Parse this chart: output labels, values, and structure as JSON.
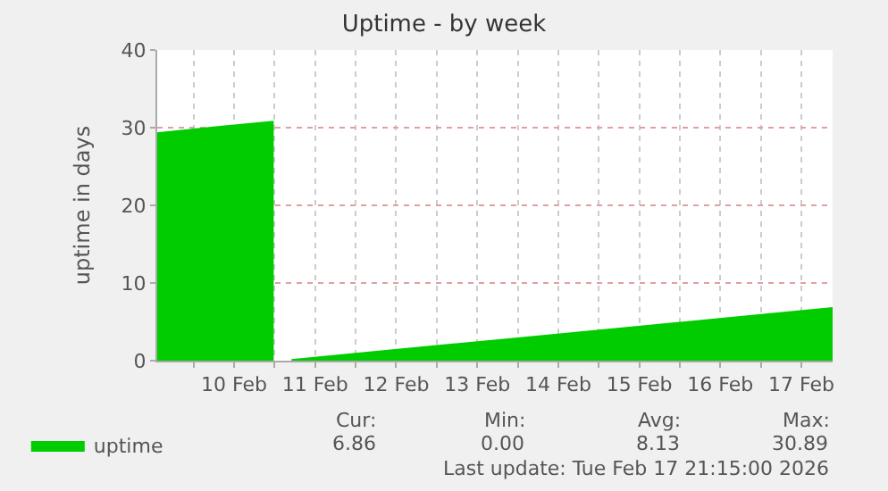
{
  "chart_data": {
    "type": "area",
    "title": "Uptime - by week",
    "ylabel": "uptime in days",
    "x": [
      "2026-02-09T13:15",
      "2026-02-10T00:00",
      "2026-02-10T12:00",
      "2026-02-10T23:45",
      "2026-02-11T00:00",
      "2026-02-11T05:00",
      "2026-02-12T00:00",
      "2026-02-13T00:00",
      "2026-02-14T00:00",
      "2026-02-15T00:00",
      "2026-02-16T00:00",
      "2026-02-17T00:00",
      "2026-02-17T21:15"
    ],
    "series": [
      {
        "name": "uptime",
        "color": "#00cc00",
        "values": [
          29.4,
          29.9,
          30.4,
          30.9,
          null,
          0.2,
          1.0,
          2.0,
          3.0,
          4.0,
          5.0,
          6.0,
          6.9
        ]
      }
    ],
    "xlim": [
      "2026-02-09T13:15",
      "2026-02-17T21:15"
    ],
    "xticks": [
      {
        "value": "2026-02-10T00:00",
        "label": null
      },
      {
        "value": "2026-02-10T12:00",
        "label": "10 Feb"
      },
      {
        "value": "2026-02-11T00:00",
        "label": null
      },
      {
        "value": "2026-02-11T12:00",
        "label": "11 Feb"
      },
      {
        "value": "2026-02-12T00:00",
        "label": null
      },
      {
        "value": "2026-02-12T12:00",
        "label": "12 Feb"
      },
      {
        "value": "2026-02-13T00:00",
        "label": null
      },
      {
        "value": "2026-02-13T12:00",
        "label": "13 Feb"
      },
      {
        "value": "2026-02-14T00:00",
        "label": null
      },
      {
        "value": "2026-02-14T12:00",
        "label": "14 Feb"
      },
      {
        "value": "2026-02-15T00:00",
        "label": null
      },
      {
        "value": "2026-02-15T12:00",
        "label": "15 Feb"
      },
      {
        "value": "2026-02-16T00:00",
        "label": null
      },
      {
        "value": "2026-02-16T12:00",
        "label": "16 Feb"
      },
      {
        "value": "2026-02-17T00:00",
        "label": null
      },
      {
        "value": "2026-02-17T12:00",
        "label": "17 Feb"
      }
    ],
    "ylim": [
      0,
      40
    ],
    "yticks": [
      0,
      10,
      20,
      30,
      40
    ],
    "grid": true,
    "legend": "bottom left",
    "annotations": [
      "Cur:",
      "6.86",
      "Min:",
      "0.00",
      "Avg:",
      "8.13",
      "Max:",
      "30.89",
      "Last update: Tue Feb 17 21:15:00 2026"
    ]
  }
}
